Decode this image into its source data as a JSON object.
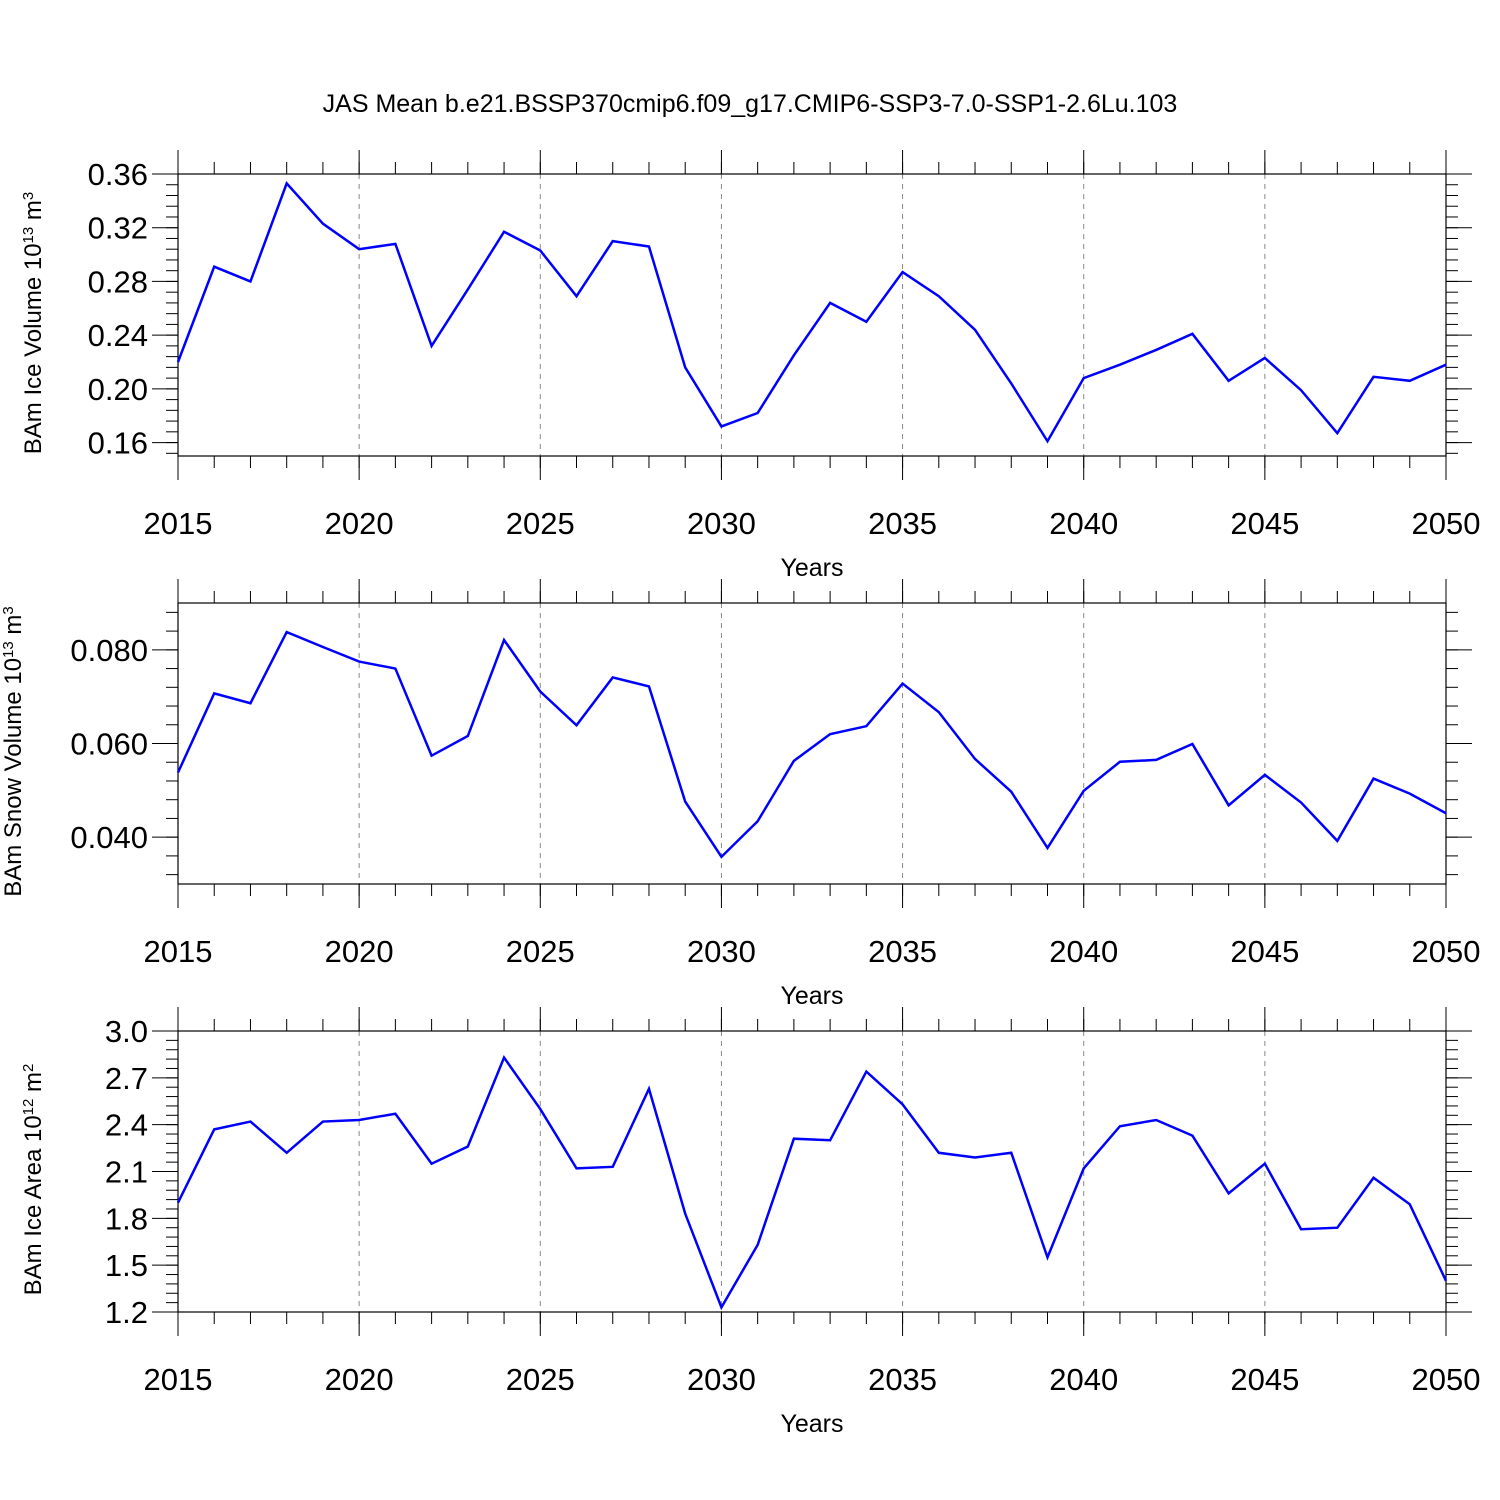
{
  "title": "JAS Mean b.e21.BSSP370cmip6.f09_g17.CMIP6-SSP3-7.0-SSP1-2.6Lu.103",
  "chart_data": [
    {
      "type": "line",
      "ylabel": [
        "BAm Ice Volume 10",
        "13",
        " m",
        "3"
      ],
      "xlabel": "Years",
      "color": "#0000ff",
      "xgrid": true,
      "x": [
        2015,
        2016,
        2017,
        2018,
        2019,
        2020,
        2021,
        2022,
        2023,
        2024,
        2025,
        2026,
        2027,
        2028,
        2029,
        2030,
        2031,
        2032,
        2033,
        2034,
        2035,
        2036,
        2037,
        2038,
        2039,
        2040,
        2041,
        2042,
        2043,
        2044,
        2045,
        2046,
        2047,
        2048,
        2049,
        2050
      ],
      "values": [
        0.22,
        0.291,
        0.28,
        0.353,
        0.323,
        0.304,
        0.308,
        0.232,
        0.274,
        0.317,
        0.303,
        0.269,
        0.31,
        0.306,
        0.216,
        0.172,
        0.182,
        0.225,
        0.264,
        0.25,
        0.287,
        0.269,
        0.244,
        0.204,
        0.161,
        0.208,
        0.218,
        0.229,
        0.241,
        0.206,
        0.223,
        0.199,
        0.167,
        0.209,
        0.206,
        0.218
      ],
      "xlim": [
        2015,
        2050
      ],
      "xticks": [
        2015,
        2020,
        2025,
        2030,
        2035,
        2040,
        2045,
        2050
      ],
      "ylim": [
        0.15,
        0.36
      ],
      "yticks": [
        {
          "value": 0.16,
          "label": "0.16"
        },
        {
          "value": 0.2,
          "label": "0.20"
        },
        {
          "value": 0.24,
          "label": "0.24"
        },
        {
          "value": 0.28,
          "label": "0.28"
        },
        {
          "value": 0.32,
          "label": "0.32"
        },
        {
          "value": 0.36,
          "label": "0.36"
        }
      ]
    },
    {
      "type": "line",
      "ylabel": [
        "BAm Snow Volume 10",
        "13",
        " m",
        "3"
      ],
      "xlabel": "Years",
      "color": "#0000ff",
      "xgrid": true,
      "x": [
        2015,
        2016,
        2017,
        2018,
        2019,
        2020,
        2021,
        2022,
        2023,
        2024,
        2025,
        2026,
        2027,
        2028,
        2029,
        2030,
        2031,
        2032,
        2033,
        2034,
        2035,
        2036,
        2037,
        2038,
        2039,
        2040,
        2041,
        2042,
        2043,
        2044,
        2045,
        2046,
        2047,
        2048,
        2049,
        2050
      ],
      "values": [
        0.0538,
        0.0707,
        0.0686,
        0.0838,
        0.0806,
        0.0775,
        0.076,
        0.0574,
        0.0616,
        0.0821,
        0.0711,
        0.0639,
        0.0741,
        0.0722,
        0.0476,
        0.0358,
        0.0434,
        0.0563,
        0.062,
        0.0637,
        0.0728,
        0.0667,
        0.0567,
        0.0497,
        0.0377,
        0.0499,
        0.0561,
        0.0565,
        0.0599,
        0.0468,
        0.0533,
        0.0474,
        0.0392,
        0.0525,
        0.0493,
        0.0451
      ],
      "xlim": [
        2015,
        2050
      ],
      "xticks": [
        2015,
        2020,
        2025,
        2030,
        2035,
        2040,
        2045,
        2050
      ],
      "ylim": [
        0.03,
        0.09
      ],
      "yticks": [
        {
          "value": 0.04,
          "label": "0.040"
        },
        {
          "value": 0.06,
          "label": "0.060"
        },
        {
          "value": 0.08,
          "label": "0.080"
        }
      ]
    },
    {
      "type": "line",
      "ylabel": [
        "BAm Ice Area 10",
        "12",
        " m",
        "2"
      ],
      "xlabel": "Years",
      "color": "#0000ff",
      "xgrid": true,
      "x": [
        2015,
        2016,
        2017,
        2018,
        2019,
        2020,
        2021,
        2022,
        2023,
        2024,
        2025,
        2026,
        2027,
        2028,
        2029,
        2030,
        2031,
        2032,
        2033,
        2034,
        2035,
        2036,
        2037,
        2038,
        2039,
        2040,
        2041,
        2042,
        2043,
        2044,
        2045,
        2046,
        2047,
        2048,
        2049,
        2050
      ],
      "values": [
        1.9,
        2.37,
        2.42,
        2.22,
        2.42,
        2.43,
        2.47,
        2.15,
        2.26,
        2.83,
        2.5,
        2.12,
        2.13,
        2.63,
        1.83,
        1.23,
        1.63,
        2.31,
        2.3,
        2.74,
        2.53,
        2.22,
        2.19,
        2.22,
        1.55,
        2.12,
        2.39,
        2.43,
        2.33,
        1.96,
        2.15,
        1.73,
        1.74,
        2.06,
        1.89,
        1.4
      ],
      "xlim": [
        2015,
        2050
      ],
      "xticks": [
        2015,
        2020,
        2025,
        2030,
        2035,
        2040,
        2045,
        2050
      ],
      "ylim": [
        1.2,
        3.0
      ],
      "yticks": [
        1.2,
        1.5,
        1.8,
        2.1,
        2.4,
        2.7,
        {
          "value": 3.0,
          "label": "3.0"
        }
      ]
    }
  ]
}
